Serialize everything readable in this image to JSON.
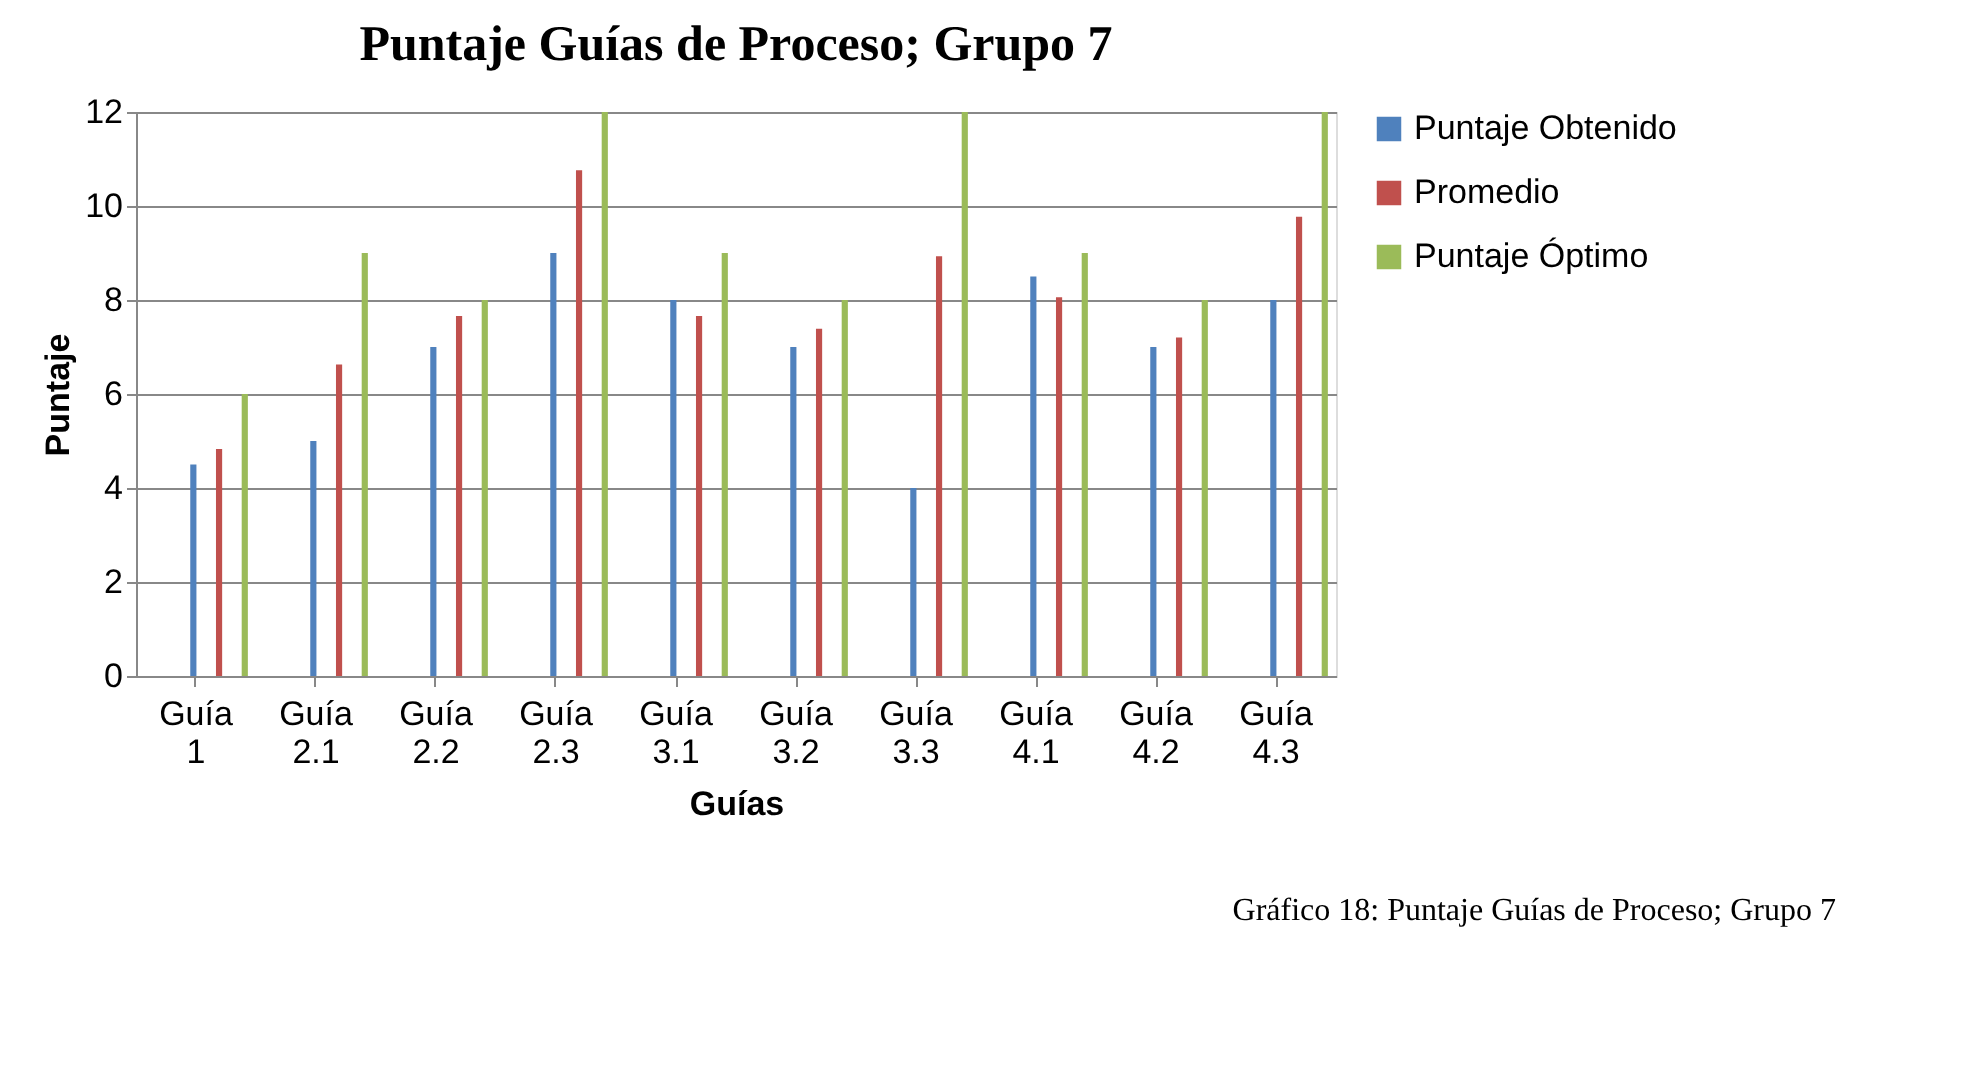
{
  "chart_data": {
    "type": "bar",
    "title": "Puntaje Guías de Proceso; Grupo 7",
    "xlabel": "Guías",
    "ylabel": "Puntaje",
    "categories": [
      "Guía 1",
      "Guía 2.1",
      "Guía 2.2",
      "Guía 2.3",
      "Guía 3.1",
      "Guía 3.2",
      "Guía 3.3",
      "Guía 4.1",
      "Guía 4.2",
      "Guía 4.3"
    ],
    "series": [
      {
        "name": "Puntaje Obtenido",
        "color": "#4f81bd",
        "values": [
          4.5,
          5,
          7,
          9,
          8,
          7,
          4,
          8.5,
          7,
          8
        ]
      },
      {
        "name": "Promedio",
        "color": "#c0504d",
        "values": [
          4.83,
          6.63,
          7.66,
          10.76,
          7.66,
          7.39,
          8.93,
          8.06,
          7.2,
          9.77
        ]
      },
      {
        "name": "Puntaje Óptimo",
        "color": "#9bbb59",
        "values": [
          6,
          9,
          8,
          12,
          9,
          8,
          12,
          9,
          8,
          12
        ]
      }
    ],
    "ylim": [
      0,
      12
    ],
    "yticks": [
      0,
      2,
      4,
      6,
      8,
      10,
      12
    ],
    "grid": "y",
    "legend": "right",
    "annotations": [
      "Gráfico 18: Puntaje Guías de Proceso; Grupo 7"
    ]
  }
}
